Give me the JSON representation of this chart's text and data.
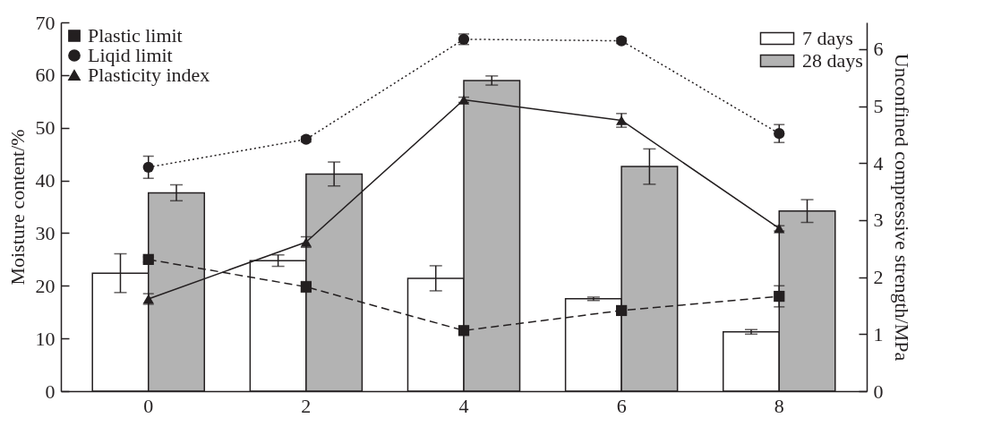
{
  "chart_data": {
    "type": "bar",
    "categories": [
      "0",
      "2",
      "4",
      "6",
      "8"
    ],
    "ylabel": "Moisture content/%",
    "y2label": "Unconfined compressive strength/MPa",
    "ylim": [
      0,
      70
    ],
    "yticks": [
      0,
      10,
      20,
      30,
      40,
      50,
      60,
      70
    ],
    "y2lim": [
      0,
      6.47
    ],
    "y2ticks": [
      0,
      1,
      2,
      3,
      4,
      5,
      6
    ],
    "grid": false,
    "legend": "top",
    "series": [
      {
        "name": "7 days",
        "axis": "y2",
        "color": "#ffffff",
        "values": [
          2.07,
          2.29,
          1.98,
          1.62,
          1.04
        ],
        "errors": [
          0.34,
          0.1,
          0.22,
          0.03,
          0.04
        ]
      },
      {
        "name": "28 days",
        "axis": "y2",
        "color": "#b3b3b3",
        "values": [
          3.48,
          3.81,
          5.45,
          3.94,
          3.16
        ],
        "errors": [
          0.14,
          0.21,
          0.08,
          0.31,
          0.2
        ]
      },
      {
        "name": "Plastic limit",
        "type": "line",
        "color": "#231f20",
        "marker": "square",
        "line_style": "dashed",
        "values": [
          25.0,
          19.8,
          11.5,
          15.3,
          18.0
        ],
        "errors": [
          0.5,
          1,
          0.5,
          0.5,
          2
        ]
      },
      {
        "name": "Liqid limit",
        "type": "line",
        "color": "#231f20",
        "marker": "circle",
        "line_style": "dotted",
        "values": [
          42.5,
          47.8,
          66.8,
          66.5,
          48.9
        ],
        "errors": [
          2.1,
          0.5,
          1,
          0.5,
          1.7
        ]
      },
      {
        "name": "Plasticity index",
        "type": "line",
        "color": "#231f20",
        "marker": "triangle",
        "line_style": "solid",
        "values": [
          17.5,
          28.3,
          55.3,
          51.4,
          30.9
        ],
        "errors": [
          1,
          1,
          0.5,
          1.3,
          0.5
        ]
      }
    ]
  }
}
